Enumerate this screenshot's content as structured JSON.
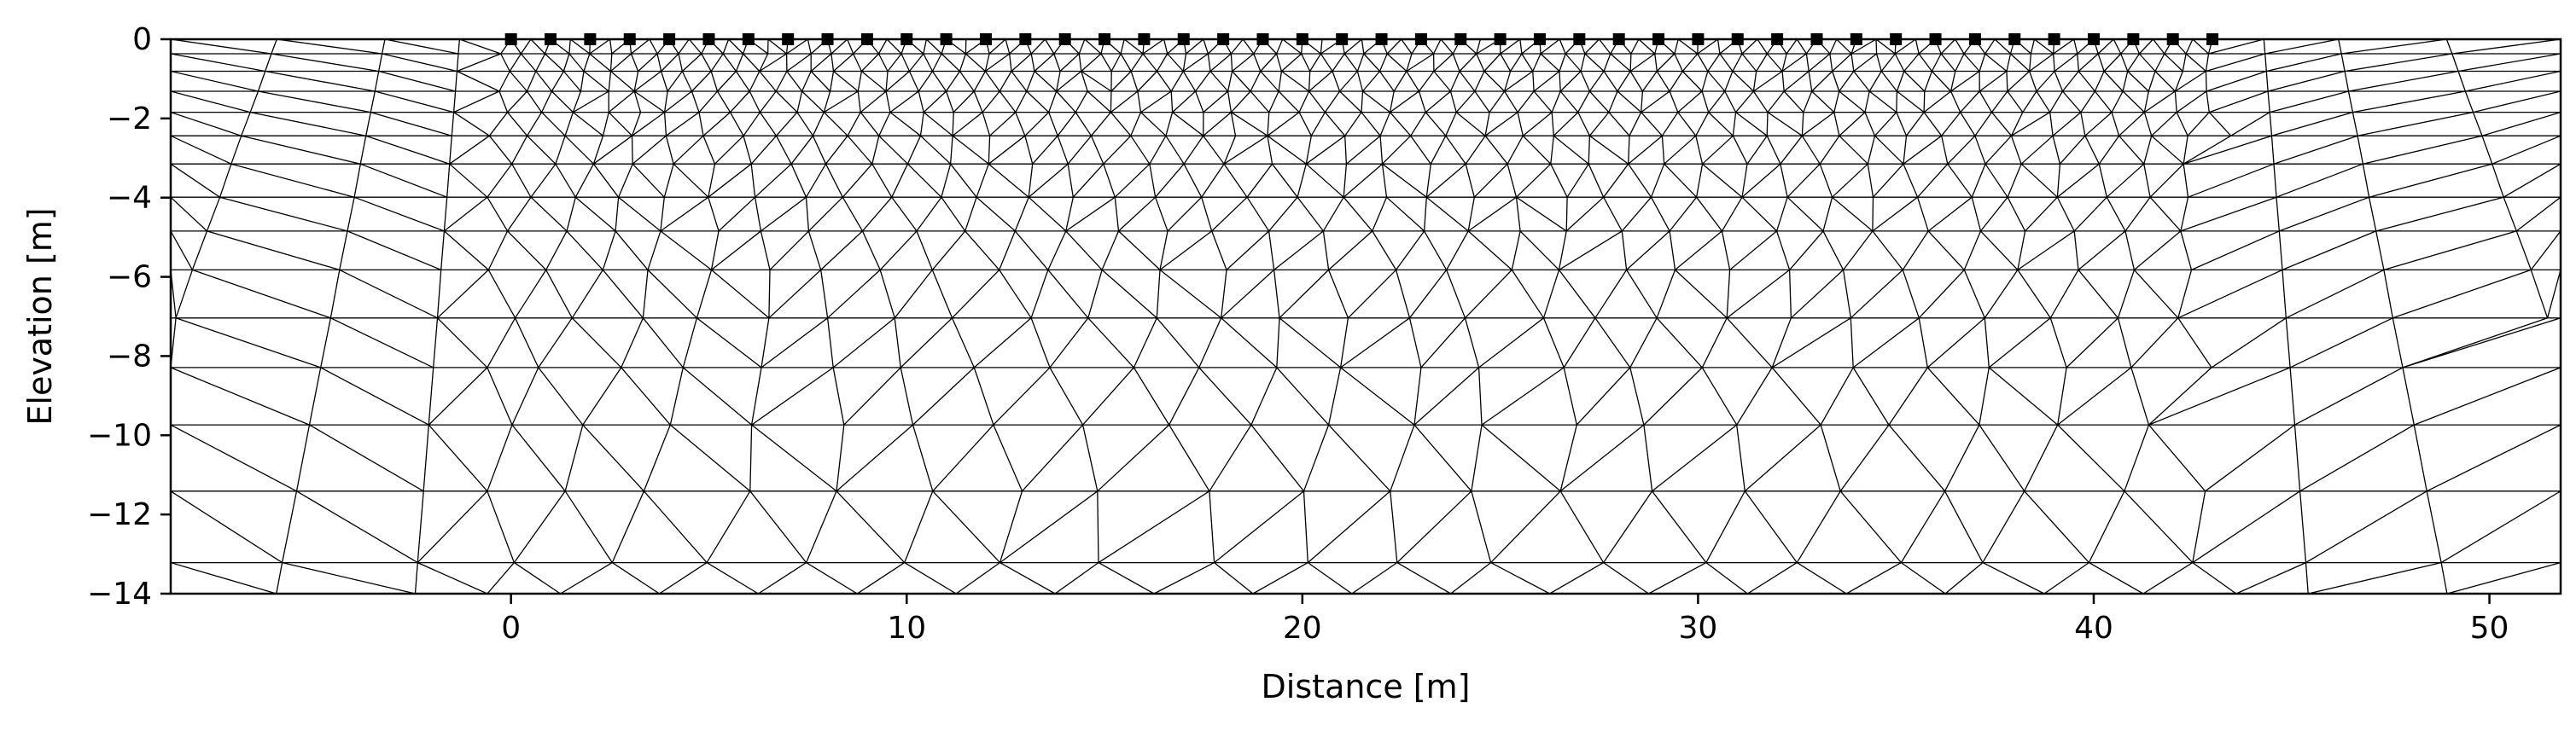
{
  "colors": {
    "mesh": "#000000",
    "frame": "#000000",
    "background": "#ffffff",
    "electrode": "#000000"
  },
  "chart_data": {
    "type": "mesh",
    "xlabel": "Distance [m]",
    "ylabel": "Elevation [m]",
    "xlim": [
      -8.6,
      51.8
    ],
    "ylim": [
      -14,
      0
    ],
    "x_ticks": [
      0,
      10,
      20,
      30,
      40,
      50
    ],
    "y_ticks": [
      0,
      -2,
      -4,
      -6,
      -8,
      -10,
      -12,
      -14
    ],
    "x_tick_labels": [
      "0",
      "10",
      "20",
      "30",
      "40",
      "50"
    ],
    "y_tick_labels": [
      "0",
      "−2",
      "−4",
      "−6",
      "−8",
      "−10",
      "−12",
      "−14"
    ],
    "grid": false,
    "electrodes": {
      "count": 44,
      "x_start": 0,
      "x_end": 43,
      "spacing": 1,
      "y": 0,
      "marker": "square"
    },
    "mesh": {
      "element_type": "triangle",
      "inner_region_x": [
        0,
        43
      ],
      "inner_region_y": [
        -14,
        0
      ]
    }
  }
}
